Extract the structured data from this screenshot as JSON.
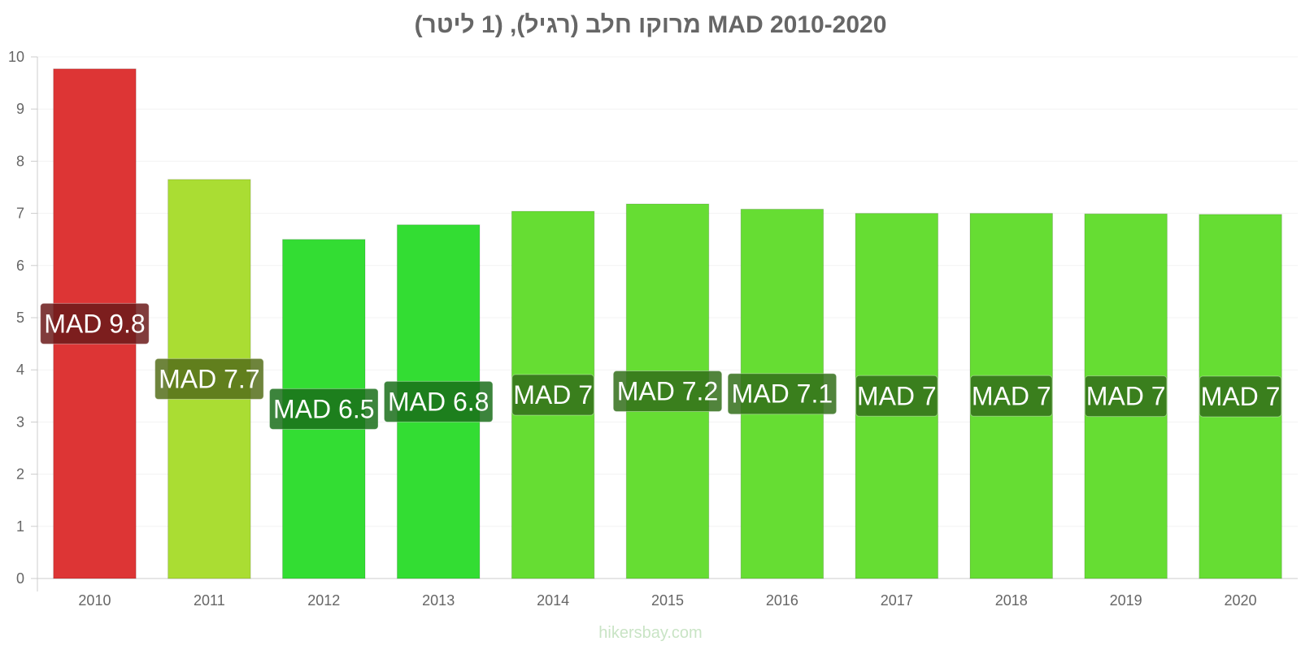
{
  "chart_data": {
    "type": "bar",
    "title": "מרוקו חלב (רגיל), (1 ליטר) MAD 2010-2020",
    "categories": [
      "2010",
      "2011",
      "2012",
      "2013",
      "2014",
      "2015",
      "2016",
      "2017",
      "2018",
      "2019",
      "2020"
    ],
    "values": [
      9.77,
      7.65,
      6.5,
      6.78,
      7.04,
      7.18,
      7.08,
      7.0,
      7.0,
      6.99,
      6.98
    ],
    "labels": [
      "MAD 9.8",
      "MAD 7.7",
      "MAD 6.5",
      "MAD 6.8",
      "MAD 7",
      "MAD 7.2",
      "MAD 7.1",
      "MAD 7",
      "MAD 7",
      "MAD 7",
      "MAD 7"
    ],
    "colors": [
      "#dd3535",
      "#aadd33",
      "#33dd33",
      "#33dd33",
      "#66dd33",
      "#66dd33",
      "#66dd33",
      "#66dd33",
      "#66dd33",
      "#66dd33",
      "#66dd33"
    ],
    "label_box_colors": [
      "#6b1a1a",
      "#556e1a",
      "#1a6e1a",
      "#1a6e1a",
      "#336e1a",
      "#336e1a",
      "#336e1a",
      "#336e1a",
      "#336e1a",
      "#336e1a",
      "#336e1a"
    ],
    "yticks": [
      "0",
      "1",
      "2",
      "3",
      "4",
      "5",
      "6",
      "7",
      "8",
      "9",
      "10"
    ],
    "ylim": [
      0,
      10
    ],
    "xlabel": "",
    "ylabel": "",
    "grid": true,
    "legend": "none"
  },
  "watermark": "hikersbay.com"
}
